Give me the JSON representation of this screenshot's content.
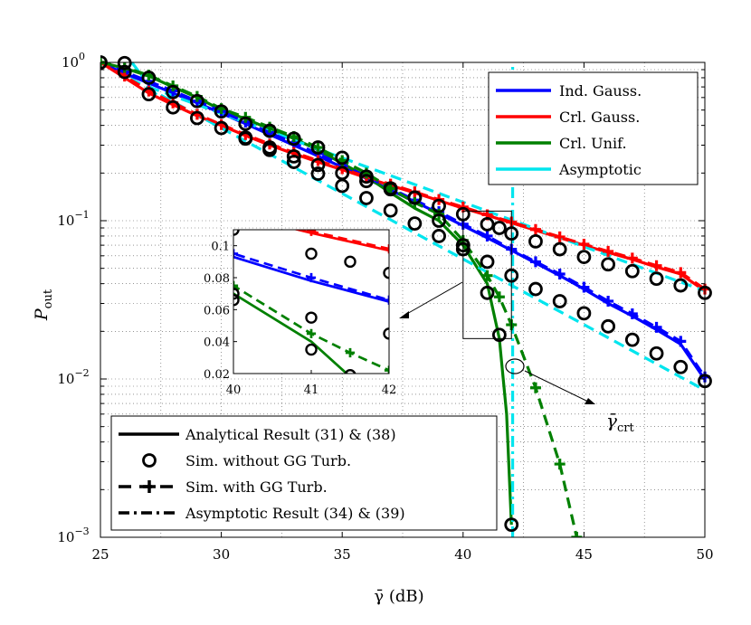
{
  "chart_data": {
    "type": "line",
    "xlabel": "γ̄ (dB)",
    "ylabel": "P_out",
    "ylabel_main": "P",
    "ylabel_sub": "out",
    "xlim": [
      25,
      50
    ],
    "ylim": [
      0.001,
      1
    ],
    "yscale": "log",
    "grid": true,
    "x_ticks": [
      25,
      30,
      35,
      40,
      45,
      50
    ],
    "x_tick_labels": [
      "25",
      "30",
      "35",
      "40",
      "45",
      "50"
    ],
    "y_ticks": [
      0.001,
      0.01,
      0.1,
      1
    ],
    "y_tick_labels": [
      {
        "base": "10",
        "exp": "−3"
      },
      {
        "base": "10",
        "exp": "−2"
      },
      {
        "base": "10",
        "exp": "−1"
      },
      {
        "base": "10",
        "exp": "0"
      }
    ],
    "colors": {
      "ind_gauss": "#0000ff",
      "crl_gauss": "#ff0000",
      "crl_unif": "#008000",
      "asymptotic": "#00e5ee",
      "black": "#000000"
    },
    "legend_models": [
      {
        "label": "Ind. Gauss.",
        "color_key": "ind_gauss"
      },
      {
        "label": "Crl. Gauss.",
        "color_key": "crl_gauss"
      },
      {
        "label": "Crl. Unif.",
        "color_key": "crl_unif"
      },
      {
        "label": "Asymptotic",
        "color_key": "asymptotic"
      }
    ],
    "legend_methods": [
      {
        "label": "Analytical Result (31) & (38)",
        "style": "solid"
      },
      {
        "label": "Sim. without GG Turb.",
        "style": "circle"
      },
      {
        "label": "Sim. with GG Turb.",
        "style": "dashed-plus"
      },
      {
        "label": "Asymptotic Result (34) & (39)",
        "style": "dashdot"
      }
    ],
    "gamma_crt_label": "γ̄",
    "gamma_crt_sub": "crt",
    "gamma_crt_x": 42.05,
    "series": [
      {
        "name": "Ind. Gauss. analytical",
        "color_key": "ind_gauss",
        "style": "solid",
        "x": [
          25,
          26,
          27,
          28,
          29,
          30,
          31,
          32,
          33,
          34,
          35,
          36,
          37,
          38,
          39,
          40,
          41,
          42,
          43,
          44,
          45,
          46,
          47,
          48,
          49,
          50
        ],
        "y": [
          1.0,
          0.85,
          0.74,
          0.64,
          0.555,
          0.478,
          0.41,
          0.35,
          0.3,
          0.256,
          0.218,
          0.185,
          0.156,
          0.132,
          0.111,
          0.093,
          0.078,
          0.065,
          0.054,
          0.045,
          0.037,
          0.03,
          0.025,
          0.0205,
          0.0166,
          0.0099
        ]
      },
      {
        "name": "Ind. Gauss. sim without GG",
        "color_key": "black",
        "style": "circle",
        "x": [
          31,
          32,
          33,
          34,
          35,
          36,
          37,
          38,
          39,
          40,
          41,
          42,
          43,
          44,
          45,
          46,
          47,
          48,
          49,
          50
        ],
        "y": [
          0.33,
          0.28,
          0.235,
          0.198,
          0.166,
          0.139,
          0.116,
          0.096,
          0.08,
          0.066,
          0.055,
          0.045,
          0.037,
          0.031,
          0.026,
          0.0215,
          0.0177,
          0.0145,
          0.0119,
          0.0097
        ]
      },
      {
        "name": "Ind. Gauss. sim with GG",
        "color_key": "ind_gauss",
        "style": "dashed-plus",
        "x": [
          25,
          26,
          27,
          28,
          29,
          30,
          31,
          32,
          33,
          34,
          35,
          36,
          37,
          38,
          39,
          40,
          41,
          42,
          43,
          44,
          45,
          46,
          47,
          48,
          49,
          50
        ],
        "y": [
          1.0,
          0.87,
          0.76,
          0.66,
          0.57,
          0.49,
          0.42,
          0.36,
          0.31,
          0.265,
          0.225,
          0.19,
          0.16,
          0.135,
          0.114,
          0.095,
          0.08,
          0.066,
          0.055,
          0.046,
          0.038,
          0.031,
          0.0258,
          0.0212,
          0.0173,
          0.0103
        ]
      },
      {
        "name": "Crl. Gauss. analytical",
        "color_key": "crl_gauss",
        "style": "solid",
        "x": [
          25,
          26,
          27,
          28,
          29,
          30,
          31,
          32,
          33,
          34,
          35,
          36,
          37,
          38,
          39,
          40,
          41,
          42,
          43,
          44,
          45,
          46,
          47,
          48,
          49,
          50
        ],
        "y": [
          1.0,
          0.8,
          0.64,
          0.54,
          0.46,
          0.4,
          0.345,
          0.3,
          0.265,
          0.235,
          0.21,
          0.187,
          0.167,
          0.15,
          0.134,
          0.12,
          0.108,
          0.097,
          0.087,
          0.078,
          0.07,
          0.063,
          0.057,
          0.051,
          0.046,
          0.036
        ]
      },
      {
        "name": "Crl. Gauss. sim without GG",
        "color_key": "black",
        "style": "circle",
        "x": [
          26,
          27,
          28,
          29,
          30,
          31,
          32,
          33,
          34,
          35,
          36,
          37,
          38,
          39,
          40,
          41,
          41.5,
          42,
          43,
          44,
          45,
          46,
          47,
          48,
          49,
          50
        ],
        "y": [
          0.87,
          0.63,
          0.52,
          0.445,
          0.385,
          0.335,
          0.29,
          0.255,
          0.225,
          0.2,
          0.178,
          0.158,
          0.14,
          0.124,
          0.11,
          0.095,
          0.09,
          0.083,
          0.074,
          0.066,
          0.059,
          0.053,
          0.048,
          0.043,
          0.039,
          0.035
        ]
      },
      {
        "name": "Crl. Gauss. sim with GG",
        "color_key": "crl_gauss",
        "style": "dashed-plus",
        "x": [
          25,
          26,
          27,
          28,
          29,
          30,
          31,
          32,
          33,
          34,
          35,
          36,
          37,
          38,
          39,
          40,
          41,
          42,
          43,
          44,
          45,
          46,
          47,
          48,
          49,
          50
        ],
        "y": [
          1.0,
          0.82,
          0.66,
          0.555,
          0.47,
          0.405,
          0.35,
          0.305,
          0.27,
          0.24,
          0.213,
          0.19,
          0.17,
          0.152,
          0.136,
          0.122,
          0.109,
          0.098,
          0.088,
          0.079,
          0.071,
          0.064,
          0.058,
          0.052,
          0.047,
          0.037
        ]
      },
      {
        "name": "Crl. Unif. analytical",
        "color_key": "crl_unif",
        "style": "solid",
        "x": [
          25,
          26,
          27,
          28,
          29,
          30,
          31,
          32,
          33,
          34,
          35,
          36,
          37,
          38,
          39,
          40,
          41,
          41.5,
          41.8,
          42.0
        ],
        "y": [
          1.0,
          0.92,
          0.82,
          0.7,
          0.6,
          0.5,
          0.44,
          0.38,
          0.33,
          0.28,
          0.23,
          0.19,
          0.15,
          0.12,
          0.1,
          0.07,
          0.04,
          0.018,
          0.006,
          0.0012
        ]
      },
      {
        "name": "Crl. Unif. sim without GG",
        "color_key": "black",
        "style": "circle",
        "x": [
          25,
          26,
          27,
          28,
          29,
          30,
          31,
          32,
          33,
          34,
          35,
          36,
          37,
          38,
          39,
          40,
          41,
          41.5,
          42
        ],
        "y": [
          1.0,
          0.99,
          0.8,
          0.65,
          0.57,
          0.49,
          0.41,
          0.37,
          0.33,
          0.29,
          0.25,
          0.19,
          0.16,
          0.14,
          0.1,
          0.07,
          0.035,
          0.019,
          0.0012
        ]
      },
      {
        "name": "Crl. Unif. sim with GG",
        "color_key": "crl_unif",
        "style": "dashed-plus",
        "x": [
          25,
          26,
          27,
          28,
          29,
          30,
          31,
          32,
          33,
          34,
          35,
          36,
          37,
          38,
          39,
          40,
          41,
          41.5,
          42,
          43,
          44,
          44.7
        ],
        "y": [
          1.0,
          0.93,
          0.83,
          0.71,
          0.61,
          0.51,
          0.45,
          0.39,
          0.34,
          0.29,
          0.24,
          0.2,
          0.16,
          0.13,
          0.11,
          0.075,
          0.045,
          0.033,
          0.022,
          0.0088,
          0.0029,
          0.001
        ]
      },
      {
        "name": "Asymptotic Ind.",
        "color_key": "asymptotic",
        "style": "dashed",
        "x": [
          25,
          50
        ],
        "y": [
          1.0,
          0.0085
        ]
      },
      {
        "name": "Asymptotic Crl. Gauss.",
        "color_key": "asymptotic",
        "style": "dashed",
        "x": [
          27,
          50
        ],
        "y": [
          0.7,
          0.036
        ]
      },
      {
        "name": "Asymptotic Crl. Unif. (vertical)",
        "color_key": "asymptotic",
        "style": "dashdot",
        "x": [
          42.05,
          42.05
        ],
        "y": [
          0.001,
          1
        ]
      },
      {
        "name": "Asymptotic Crl. Unif. top",
        "color_key": "asymptotic",
        "style": "dashdot",
        "x": [
          26.3,
          27.4
        ],
        "y": [
          1.0,
          0.6
        ]
      }
    ],
    "inset": {
      "xlim": [
        40,
        42
      ],
      "ylim": [
        0.02,
        0.11
      ],
      "x_ticks": [
        40,
        41,
        42
      ],
      "x_tick_labels": [
        "40",
        "41",
        "42"
      ],
      "y_ticks": [
        0.02,
        0.04,
        0.06,
        0.08,
        0.1
      ],
      "y_tick_labels": [
        "0.02",
        "0.04",
        "0.06",
        "0.08",
        "0.1"
      ],
      "zoom_box": {
        "x": [
          40,
          42
        ],
        "y": [
          0.018,
          0.115
        ]
      }
    }
  }
}
